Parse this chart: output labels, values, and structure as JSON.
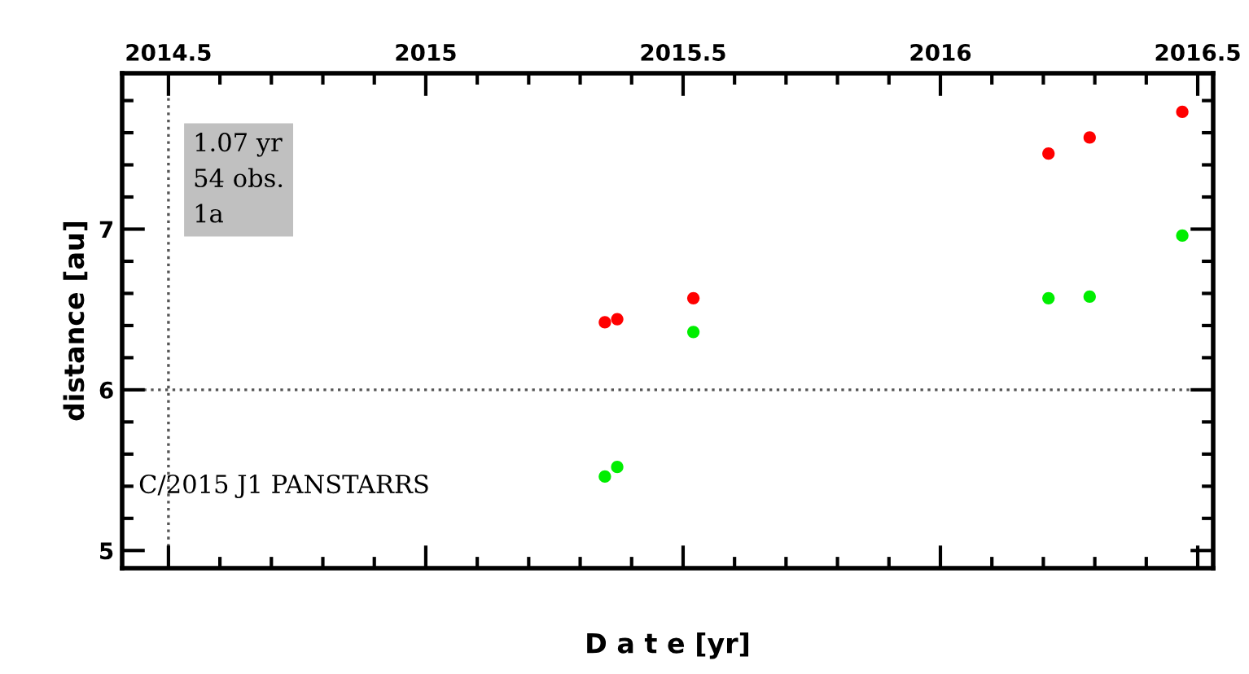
{
  "chart_data": {
    "type": "scatter",
    "xlabel": "D a t e [yr]",
    "ylabel": "distance [au]",
    "xlim": [
      2014.41,
      2016.53
    ],
    "xticks": [
      2014.5,
      2015,
      2015.5,
      2016,
      2016.5
    ],
    "ylim": [
      4.89,
      7.97
    ],
    "yticks": [
      5,
      6,
      7
    ],
    "marker": "circle",
    "grid": false,
    "legend": false,
    "series": [
      {
        "color": "#ff0000",
        "x": [
          2015.348,
          2015.372,
          2015.52,
          2016.21,
          2016.29,
          2016.47
        ],
        "values": [
          6.42,
          6.44,
          6.57,
          7.47,
          7.57,
          7.73
        ]
      },
      {
        "color": "#00ee00",
        "x": [
          2015.348,
          2015.372,
          2015.52,
          2016.21,
          2016.29,
          2016.47
        ],
        "values": [
          5.46,
          5.52,
          6.36,
          6.57,
          6.58,
          6.96
        ]
      }
    ],
    "ref_lines": [
      {
        "axis": "x",
        "value": 2014.5,
        "line_style": "dotted"
      },
      {
        "axis": "y",
        "value": 6,
        "line_style": "dotted"
      }
    ],
    "annotations": [
      "1.07 yr\n54 obs.\n1a",
      "C/2015 J1 PANSTARRS"
    ]
  }
}
